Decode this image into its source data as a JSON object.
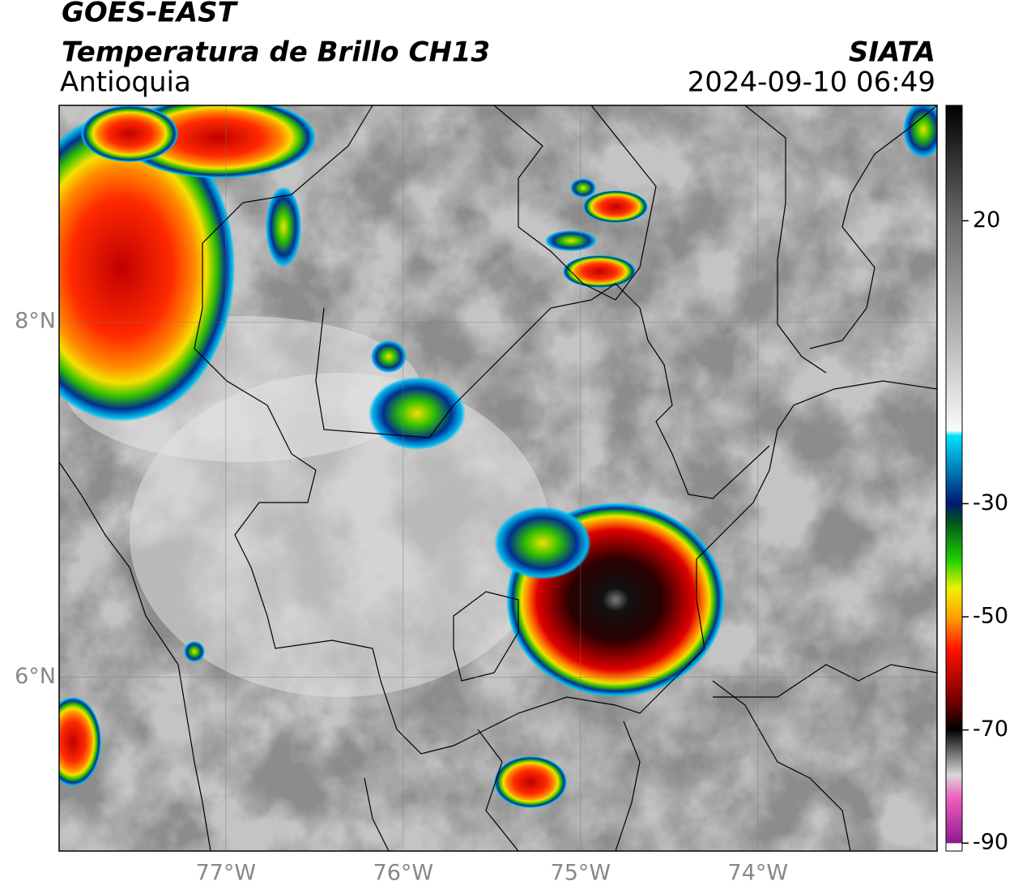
{
  "header": {
    "title": "GOES-EAST",
    "subtitle": "Temperatura de Brillo CH13",
    "region": "Antioquia",
    "source": "SIATA",
    "datetime": "2024-09-10 06:49"
  },
  "map": {
    "xlim": [
      -77.94,
      -72.99
    ],
    "ylim": [
      5.02,
      9.22
    ],
    "xticks": [
      {
        "value": -77,
        "label": "77°W"
      },
      {
        "value": -76,
        "label": "76°W"
      },
      {
        "value": -75,
        "label": "75°W"
      },
      {
        "value": -74,
        "label": "74°W"
      }
    ],
    "yticks": [
      {
        "value": 8,
        "label": "8°N"
      },
      {
        "value": 6,
        "label": "6°N"
      }
    ],
    "grid": true
  },
  "colorbar": {
    "lim": [
      -91.4,
      40.4
    ],
    "ticks": [
      20,
      -30,
      -50,
      -70,
      -90
    ]
  }
}
